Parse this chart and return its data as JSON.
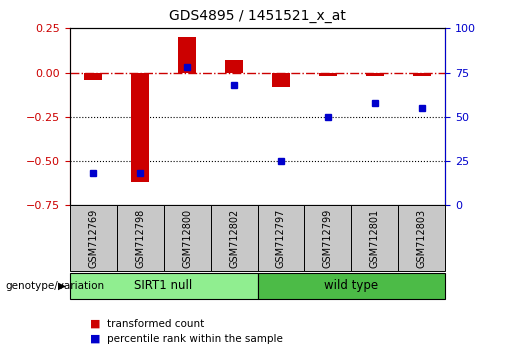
{
  "title": "GDS4895 / 1451521_x_at",
  "samples": [
    "GSM712769",
    "GSM712798",
    "GSM712800",
    "GSM712802",
    "GSM712797",
    "GSM712799",
    "GSM712801",
    "GSM712803"
  ],
  "bar_values": [
    -0.04,
    -0.62,
    0.2,
    0.07,
    -0.08,
    -0.02,
    -0.02,
    -0.02
  ],
  "percentile_values": [
    18,
    18,
    78,
    68,
    25,
    50,
    58,
    55
  ],
  "ylim_left": [
    -0.75,
    0.25
  ],
  "ylim_right": [
    0,
    100
  ],
  "yticks_left": [
    0.25,
    0.0,
    -0.25,
    -0.5,
    -0.75
  ],
  "yticks_right": [
    100,
    75,
    50,
    25,
    0
  ],
  "dotted_lines": [
    -0.25,
    -0.5
  ],
  "group1_label": "SIRT1 null",
  "group2_label": "wild type",
  "group1_indices": [
    0,
    1,
    2,
    3
  ],
  "group2_indices": [
    4,
    5,
    6,
    7
  ],
  "group1_color": "#90EE90",
  "group2_color": "#4CBB47",
  "bar_color": "#CC0000",
  "dot_color": "#0000CC",
  "sample_box_color": "#C8C8C8",
  "legend_labels": [
    "transformed count",
    "percentile rank within the sample"
  ],
  "genotype_label": "genotype/variation",
  "bar_width": 0.4
}
